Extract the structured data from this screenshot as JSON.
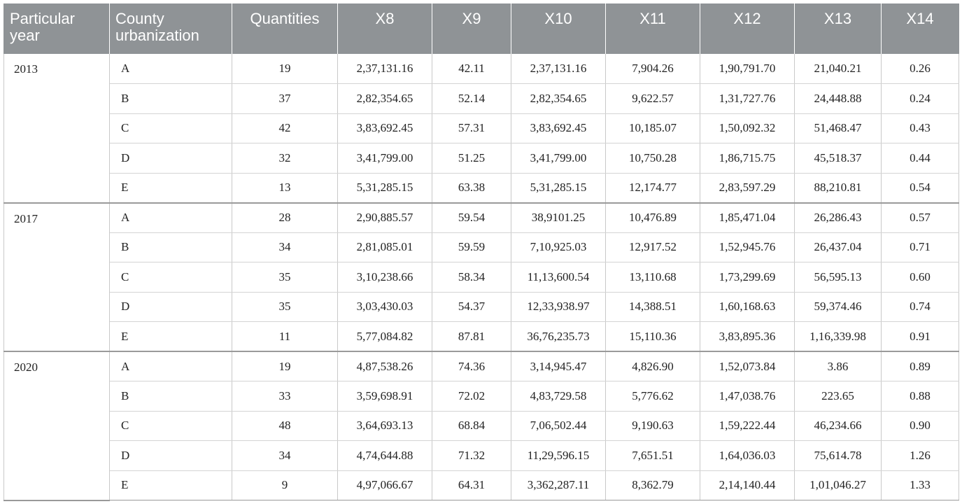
{
  "headers": [
    "Particular year",
    "County urbanization",
    "Quantities",
    "X8",
    "X9",
    "X10",
    "X11",
    "X12",
    "X13",
    "X14"
  ],
  "groups": [
    {
      "year": "2013",
      "rows": [
        [
          "A",
          "19",
          "2,37,131.16",
          "42.11",
          "2,37,131.16",
          "7,904.26",
          "1,90,791.70",
          "21,040.21",
          "0.26"
        ],
        [
          "B",
          "37",
          "2,82,354.65",
          "52.14",
          "2,82,354.65",
          "9,622.57",
          "1,31,727.76",
          "24,448.88",
          "0.24"
        ],
        [
          "C",
          "42",
          "3,83,692.45",
          "57.31",
          "3,83,692.45",
          "10,185.07",
          "1,50,092.32",
          "51,468.47",
          "0.43"
        ],
        [
          "D",
          "32",
          "3,41,799.00",
          "51.25",
          "3,41,799.00",
          "10,750.28",
          "1,86,715.75",
          "45,518.37",
          "0.44"
        ],
        [
          "E",
          "13",
          "5,31,285.15",
          "63.38",
          "5,31,285.15",
          "12,174.77",
          "2,83,597.29",
          "88,210.81",
          "0.54"
        ]
      ]
    },
    {
      "year": "2017",
      "rows": [
        [
          "A",
          "28",
          "2,90,885.57",
          "59.54",
          "38,9101.25",
          "10,476.89",
          "1,85,471.04",
          "26,286.43",
          "0.57"
        ],
        [
          "B",
          "34",
          "2,81,085.01",
          "59.59",
          "7,10,925.03",
          "12,917.52",
          "1,52,945.76",
          "26,437.04",
          "0.71"
        ],
        [
          "C",
          "35",
          "3,10,238.66",
          "58.34",
          "11,13,600.54",
          "13,110.68",
          "1,73,299.69",
          "56,595.13",
          "0.60"
        ],
        [
          "D",
          "35",
          "3,03,430.03",
          "54.37",
          "12,33,938.97",
          "14,388.51",
          "1,60,168.63",
          "59,374.46",
          "0.74"
        ],
        [
          "E",
          "11",
          "5,77,084.82",
          "87.81",
          "36,76,235.73",
          "15,110.36",
          "3,83,895.36",
          "1,16,339.98",
          "0.91"
        ]
      ]
    },
    {
      "year": "2020",
      "rows": [
        [
          "A",
          "19",
          "4,87,538.26",
          "74.36",
          "3,14,945.47",
          "4,826.90",
          "1,52,073.84",
          "3.86",
          "0.89"
        ],
        [
          "B",
          "33",
          "3,59,698.91",
          "72.02",
          "4,83,729.58",
          "5,776.62",
          "1,47,038.76",
          "223.65",
          "0.88"
        ],
        [
          "C",
          "48",
          "3,64,693.13",
          "68.84",
          "7,06,502.44",
          "9,190.63",
          "1,59,222.44",
          "46,234.66",
          "0.90"
        ],
        [
          "D",
          "34",
          "4,74,644.88",
          "71.32",
          "11,29,596.15",
          "7,651.51",
          "1,64,036.03",
          "75,614.78",
          "1.26"
        ],
        [
          "E",
          "9",
          "4,97,066.67",
          "64.31",
          "3,362,287.11",
          "8,362.79",
          "2,14,140.44",
          "1,01,046.27",
          "1.33"
        ]
      ]
    }
  ]
}
